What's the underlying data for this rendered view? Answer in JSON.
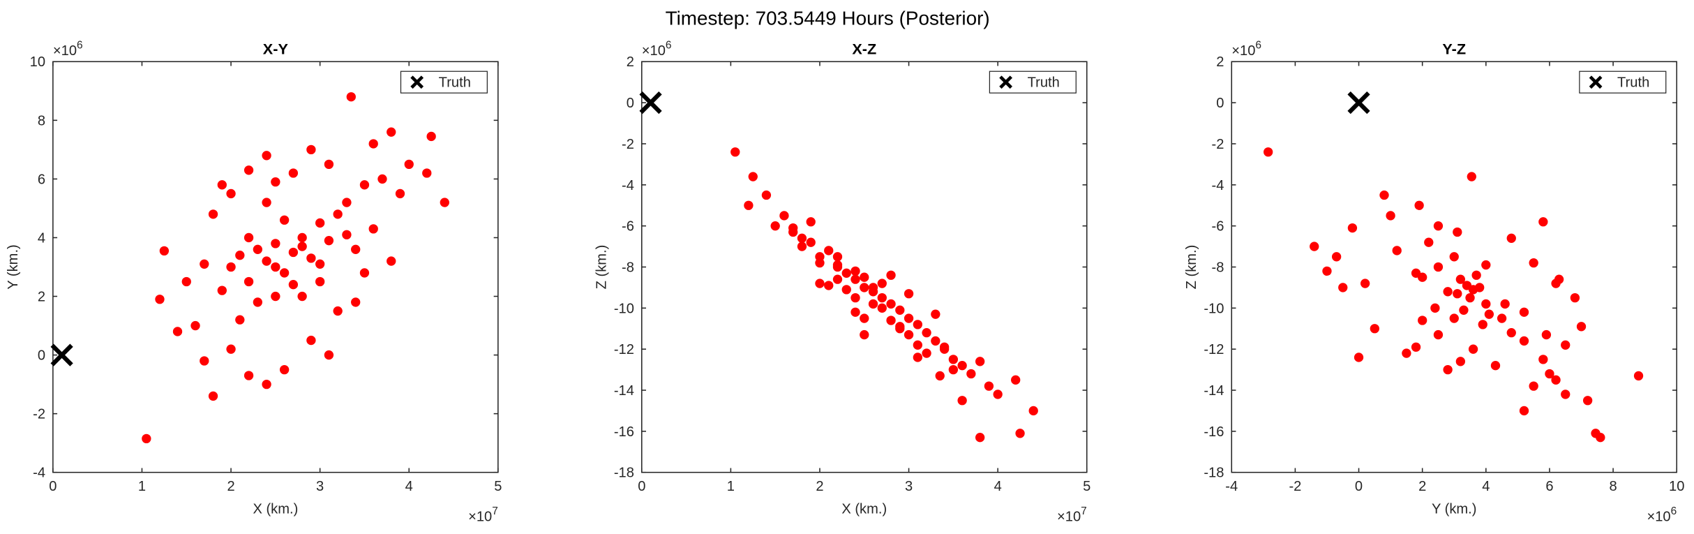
{
  "title": "Timestep: 703.5449 Hours (Posterior)",
  "chart_data": [
    {
      "type": "scatter",
      "title": "X-Y",
      "xlabel": "X (km.)",
      "ylabel": "Y (km.)",
      "x_exponent": {
        "base": "×10",
        "power": "7"
      },
      "y_exponent": {
        "base": "×10",
        "power": "6"
      },
      "xlim": [
        0,
        5
      ],
      "xticks": [
        0,
        1,
        2,
        3,
        4,
        5
      ],
      "ylim": [
        -4,
        10
      ],
      "yticks": [
        -4,
        -2,
        0,
        2,
        4,
        6,
        8,
        10
      ],
      "legend": "upper right",
      "series": [
        {
          "color": "#ff0000",
          "marker": "dot",
          "x": [
            1.05,
            3.35,
            4.4,
            3.8,
            4.25,
            1.25,
            1.2,
            1.8,
            2.0,
            2.2,
            2.4,
            2.5,
            2.6,
            2.7,
            2.8,
            2.9,
            3.0,
            3.1,
            3.2,
            2.3,
            2.5,
            2.6,
            2.4,
            2.2,
            2.1,
            1.9,
            1.7,
            1.6,
            1.5,
            1.4,
            3.3,
            3.4,
            3.5,
            3.6,
            3.7,
            3.9,
            4.0,
            4.2,
            3.0,
            2.8,
            2.7,
            2.4,
            2.9,
            3.1,
            2.2,
            2.0,
            1.8,
            2.6,
            2.4,
            2.2,
            3.2,
            3.5,
            2.9,
            2.5,
            2.8,
            3.0,
            2.3,
            2.7,
            3.3,
            2.1,
            3.6,
            2.0,
            1.7,
            3.4,
            2.5,
            3.8,
            1.9,
            3.1
          ],
          "y": [
            -2.85,
            8.8,
            5.2,
            7.6,
            7.45,
            3.55,
            1.9,
            -1.4,
            3.0,
            2.5,
            3.2,
            3.8,
            2.8,
            3.5,
            4.0,
            3.3,
            4.5,
            3.9,
            4.8,
            1.8,
            2.0,
            4.6,
            5.2,
            4.0,
            1.2,
            2.2,
            3.1,
            1.0,
            2.5,
            0.8,
            5.2,
            3.6,
            5.8,
            4.3,
            6.0,
            5.5,
            6.5,
            6.2,
            2.5,
            2.0,
            6.2,
            6.8,
            7.0,
            6.5,
            6.3,
            5.5,
            4.8,
            -0.5,
            -1.0,
            -0.7,
            1.5,
            2.8,
            0.5,
            3.0,
            3.7,
            3.1,
            3.6,
            2.4,
            4.1,
            3.4,
            7.2,
            0.2,
            -0.2,
            1.8,
            5.9,
            3.2,
            5.8,
            0.0
          ]
        },
        {
          "name": "Truth",
          "color": "#000000",
          "marker": "x",
          "x": [
            0.1
          ],
          "y": [
            0
          ]
        }
      ]
    },
    {
      "type": "scatter",
      "title": "X-Z",
      "xlabel": "X (km.)",
      "ylabel": "Z (km.)",
      "x_exponent": {
        "base": "×10",
        "power": "7"
      },
      "y_exponent": {
        "base": "×10",
        "power": "6"
      },
      "xlim": [
        0,
        5
      ],
      "xticks": [
        0,
        1,
        2,
        3,
        4,
        5
      ],
      "ylim": [
        -18,
        2
      ],
      "yticks": [
        -18,
        -16,
        -14,
        -12,
        -10,
        -8,
        -6,
        -4,
        -2,
        0,
        2
      ],
      "legend": "upper right",
      "series": [
        {
          "color": "#ff0000",
          "marker": "dot",
          "x": [
            1.05,
            3.35,
            4.4,
            3.8,
            4.25,
            1.25,
            1.2,
            1.8,
            2.0,
            2.2,
            2.4,
            2.5,
            2.6,
            2.7,
            2.8,
            2.9,
            3.0,
            3.1,
            3.2,
            2.3,
            2.5,
            2.6,
            2.4,
            2.2,
            2.1,
            1.9,
            1.7,
            1.6,
            1.5,
            1.4,
            3.3,
            3.4,
            3.5,
            3.6,
            3.7,
            3.9,
            4.0,
            4.2,
            3.0,
            2.8,
            2.7,
            2.4,
            2.9,
            3.1,
            2.2,
            2.0,
            1.8,
            2.6,
            2.4,
            2.2,
            3.2,
            3.5,
            2.9,
            2.5,
            2.8,
            3.0,
            2.3,
            2.7,
            3.3,
            2.1,
            3.6,
            2.0,
            1.7,
            3.4,
            2.5,
            3.8,
            1.9,
            3.1
          ],
          "y": [
            -2.4,
            -13.3,
            -15.0,
            -16.3,
            -16.1,
            -3.6,
            -5.0,
            -7.0,
            -7.5,
            -8.0,
            -8.6,
            -9.0,
            -9.2,
            -9.5,
            -9.8,
            -10.1,
            -10.5,
            -10.8,
            -11.2,
            -8.3,
            -8.5,
            -9.8,
            -10.2,
            -7.9,
            -7.2,
            -6.8,
            -6.3,
            -5.5,
            -6.0,
            -4.5,
            -11.6,
            -12.0,
            -12.5,
            -12.8,
            -13.2,
            -13.8,
            -14.2,
            -13.5,
            -11.3,
            -10.6,
            -8.8,
            -9.5,
            -10.9,
            -11.8,
            -8.6,
            -7.8,
            -6.6,
            -9.0,
            -8.2,
            -7.5,
            -12.2,
            -13.0,
            -11.0,
            -10.5,
            -8.4,
            -9.3,
            -9.1,
            -10.0,
            -10.3,
            -8.9,
            -14.5,
            -8.8,
            -6.1,
            -11.9,
            -11.3,
            -12.6,
            -5.8,
            -12.4
          ]
        },
        {
          "name": "Truth",
          "color": "#000000",
          "marker": "x",
          "x": [
            0.1
          ],
          "y": [
            0
          ]
        }
      ]
    },
    {
      "type": "scatter",
      "title": "Y-Z",
      "xlabel": "Y (km.)",
      "ylabel": "Z (km.)",
      "x_exponent": {
        "base": "×10",
        "power": "6"
      },
      "y_exponent": {
        "base": "×10",
        "power": "6"
      },
      "xlim": [
        -4,
        10
      ],
      "xticks": [
        -4,
        -2,
        0,
        2,
        4,
        6,
        8,
        10
      ],
      "ylim": [
        -18,
        2
      ],
      "yticks": [
        -18,
        -16,
        -14,
        -12,
        -10,
        -8,
        -6,
        -4,
        -2,
        0,
        2
      ],
      "legend": "upper right",
      "series": [
        {
          "color": "#ff0000",
          "marker": "dot",
          "x": [
            -2.85,
            8.8,
            5.2,
            7.6,
            7.45,
            3.55,
            1.9,
            -1.4,
            3.0,
            2.5,
            3.2,
            3.8,
            2.8,
            3.5,
            4.0,
            3.3,
            4.5,
            3.9,
            4.8,
            1.8,
            2.0,
            4.6,
            5.2,
            4.0,
            1.2,
            2.2,
            3.1,
            1.0,
            2.5,
            0.8,
            5.2,
            3.6,
            5.8,
            4.3,
            6.0,
            5.5,
            6.5,
            6.2,
            2.5,
            2.0,
            6.2,
            6.8,
            7.0,
            6.5,
            6.3,
            5.5,
            4.8,
            -0.5,
            -1.0,
            -0.7,
            1.5,
            2.8,
            0.5,
            3.0,
            3.7,
            3.1,
            3.6,
            2.4,
            4.1,
            3.4,
            7.2,
            0.2,
            -0.2,
            1.8,
            5.9,
            3.2,
            5.8,
            0.0
          ],
          "y": [
            -2.4,
            -13.3,
            -15.0,
            -16.3,
            -16.1,
            -3.6,
            -5.0,
            -7.0,
            -7.5,
            -8.0,
            -8.6,
            -9.0,
            -9.2,
            -9.5,
            -9.8,
            -10.1,
            -10.5,
            -10.8,
            -11.2,
            -8.3,
            -8.5,
            -9.8,
            -10.2,
            -7.9,
            -7.2,
            -6.8,
            -6.3,
            -5.5,
            -6.0,
            -4.5,
            -11.6,
            -12.0,
            -12.5,
            -12.8,
            -13.2,
            -13.8,
            -14.2,
            -13.5,
            -11.3,
            -10.6,
            -8.8,
            -9.5,
            -10.9,
            -11.8,
            -8.6,
            -7.8,
            -6.6,
            -9.0,
            -8.2,
            -7.5,
            -12.2,
            -13.0,
            -11.0,
            -10.5,
            -8.4,
            -9.3,
            -9.1,
            -10.0,
            -10.3,
            -8.9,
            -14.5,
            -8.8,
            -6.1,
            -11.9,
            -11.3,
            -12.6,
            -5.8,
            -12.4
          ]
        },
        {
          "name": "Truth",
          "color": "#000000",
          "marker": "x",
          "x": [
            0
          ],
          "y": [
            0
          ]
        }
      ]
    }
  ]
}
